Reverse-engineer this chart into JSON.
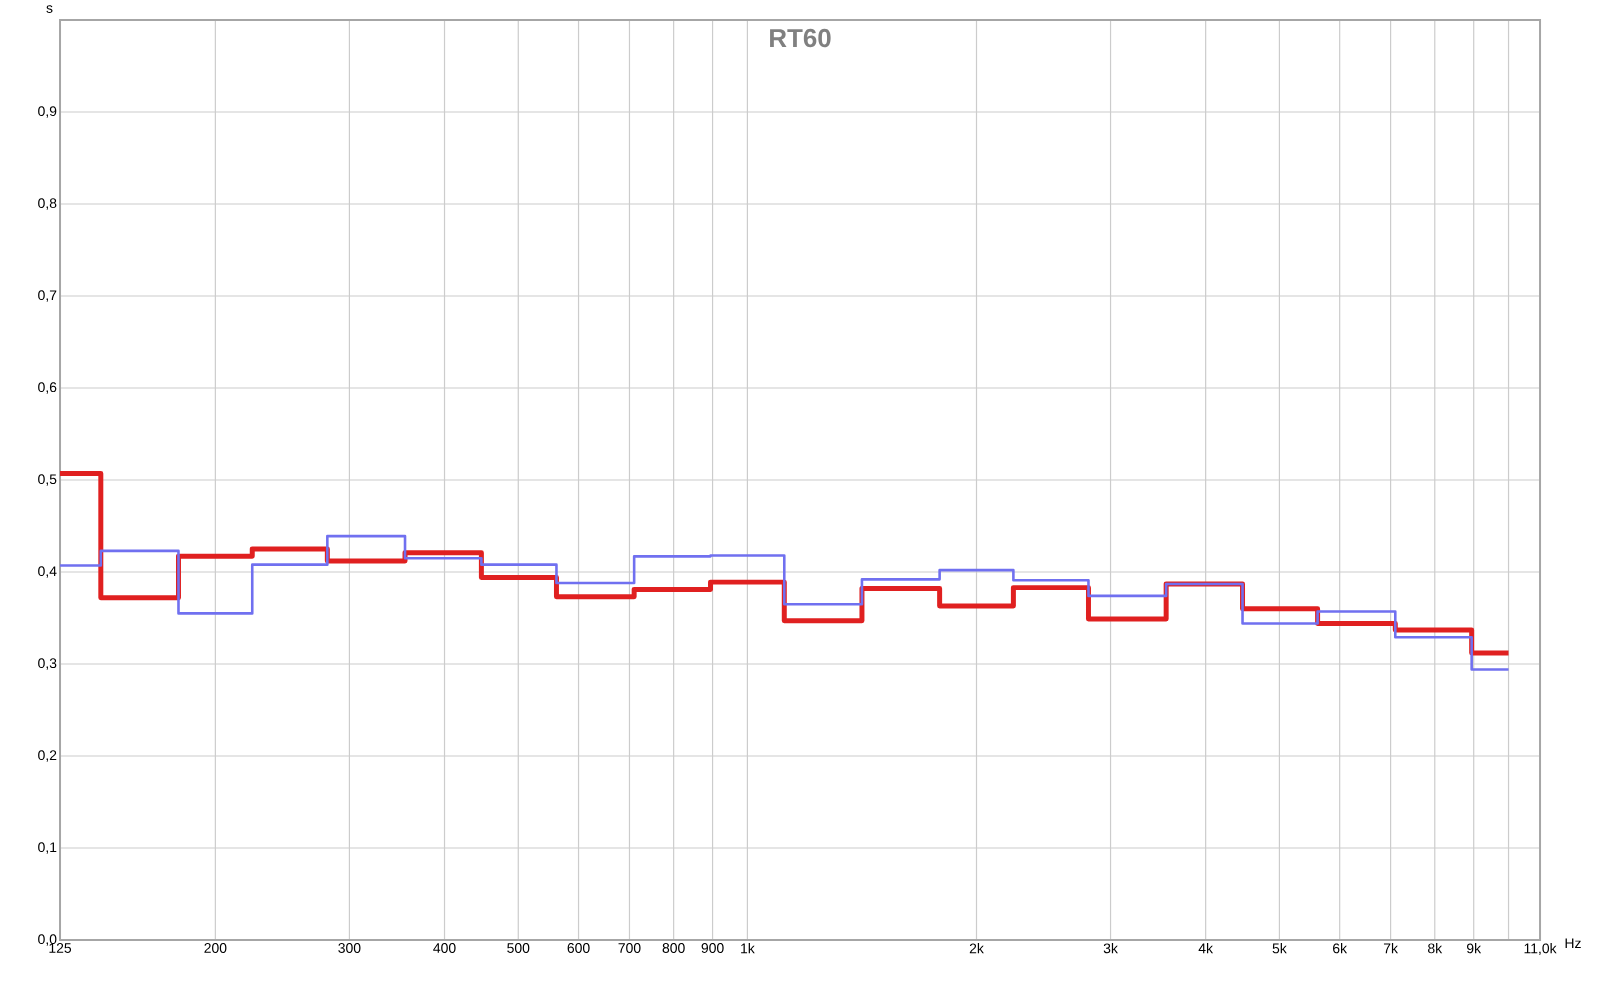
{
  "chart_data": {
    "type": "step",
    "title": "RT60",
    "xlabel": "Hz",
    "ylabel": "s",
    "log": "x",
    "grid": true,
    "x": [
      125,
      160,
      200,
      250,
      315,
      400,
      500,
      630,
      800,
      1000,
      1250,
      1600,
      2000,
      2500,
      3150,
      4000,
      5000,
      6300,
      8000,
      10000
    ],
    "series": [
      {
        "color": "#e02020",
        "values": [
          0.507,
          0.372,
          0.417,
          0.425,
          0.412,
          0.421,
          0.394,
          0.373,
          0.381,
          0.389,
          0.347,
          0.382,
          0.363,
          0.383,
          0.349,
          0.387,
          0.36,
          0.344,
          0.337,
          0.312
        ]
      },
      {
        "color": "#7070f0",
        "values": [
          0.407,
          0.423,
          0.355,
          0.408,
          0.439,
          0.415,
          0.408,
          0.388,
          0.417,
          0.418,
          0.365,
          0.392,
          0.402,
          0.391,
          0.374,
          0.387,
          0.344,
          0.357,
          0.329,
          0.294
        ]
      }
    ],
    "xlim": [
      125,
      11000
    ],
    "xticks": [
      125,
      200,
      300,
      400,
      500,
      600,
      700,
      800,
      900,
      {
        "value": 1000,
        "label": "1k"
      },
      {
        "value": 2000,
        "label": "2k"
      },
      {
        "value": 3000,
        "label": "3k"
      },
      {
        "value": 4000,
        "label": "4k"
      },
      {
        "value": 5000,
        "label": "5k"
      },
      {
        "value": 6000,
        "label": "6k"
      },
      {
        "value": 7000,
        "label": "7k"
      },
      {
        "value": 8000,
        "label": "8k"
      },
      {
        "value": 9000,
        "label": "9k"
      },
      {
        "value": 10000,
        "label": null
      },
      {
        "value": 11000,
        "label": "11,0k"
      }
    ],
    "ylim": [
      0,
      1
    ],
    "yticks": [
      {
        "value": 0,
        "label": "0,0"
      },
      {
        "value": 0.1,
        "label": "0,1"
      },
      {
        "value": 0.2,
        "label": "0,2"
      },
      {
        "value": 0.3,
        "label": "0,3"
      },
      {
        "value": 0.4,
        "label": "0,4"
      },
      {
        "value": 0.5,
        "label": "0,5"
      },
      {
        "value": 0.6,
        "label": "0,6"
      },
      {
        "value": 0.7,
        "label": "0,7"
      },
      {
        "value": 0.8,
        "label": "0,8"
      },
      {
        "value": 0.9,
        "label": "0,9"
      }
    ]
  }
}
